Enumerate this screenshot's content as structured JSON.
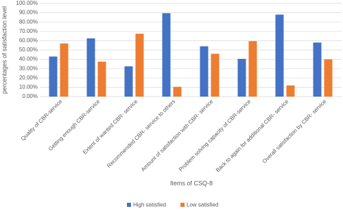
{
  "chart_data": {
    "type": "bar",
    "x_label": "Items of CSQ-8",
    "y_label": "percentages of satisfaction level",
    "categories": [
      "Quality of CBR-service",
      "Getting enough  CBR-service",
      "Extent of wanted CBR- service",
      "Recommended CBR- service to others",
      "Amount of satisfaction with CBR- service",
      "Problem solving capacity of CBR-service",
      "Back to again for additional CBR-  service",
      "Overall satisfaction by CBR- service"
    ],
    "series": [
      {
        "name": "High satisfied",
        "color": "#4472c4",
        "values": [
          43,
          62.5,
          32.5,
          89.5,
          54,
          40.5,
          88,
          58
        ]
      },
      {
        "name": "Low satisfied",
        "color": "#ed7d31",
        "values": [
          57,
          37.5,
          67.5,
          10.5,
          46,
          59.5,
          12,
          40
        ]
      }
    ],
    "ylim": [
      0,
      100
    ],
    "yticks": [
      {
        "value": 0,
        "label": "0.00%"
      },
      {
        "value": 10,
        "label": "10.00%"
      },
      {
        "value": 20,
        "label": "20.00%"
      },
      {
        "value": 30,
        "label": "30.00%"
      },
      {
        "value": 40,
        "label": "40.00%"
      },
      {
        "value": 50,
        "label": "50.00%"
      },
      {
        "value": 60,
        "label": "60.00%"
      },
      {
        "value": 70,
        "label": "70.00%"
      },
      {
        "value": 80,
        "label": "80.00%"
      },
      {
        "value": 90,
        "label": "90.00%"
      },
      {
        "value": 100,
        "label": "100.00%"
      }
    ],
    "grid": true,
    "legend": "bottom"
  }
}
